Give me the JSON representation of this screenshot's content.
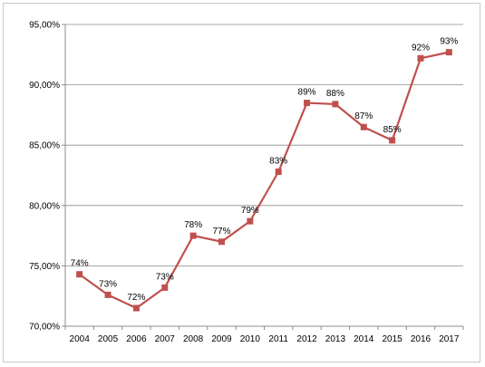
{
  "chart_data": {
    "type": "line",
    "title": "",
    "xlabel": "",
    "ylabel": "",
    "categories": [
      "2004",
      "2005",
      "2006",
      "2007",
      "2008",
      "2009",
      "2010",
      "2011",
      "2012",
      "2013",
      "2014",
      "2015",
      "2016",
      "2017"
    ],
    "series": [
      {
        "values": [
          74.3,
          72.6,
          71.5,
          73.2,
          77.5,
          77.0,
          78.7,
          82.8,
          88.5,
          88.4,
          86.5,
          85.4,
          92.2,
          92.7
        ],
        "data_labels": [
          "74%",
          "73%",
          "72%",
          "73%",
          "78%",
          "77%",
          "79%",
          "83%",
          "89%",
          "88%",
          "87%",
          "85%",
          "92%",
          "93%"
        ],
        "color": "#c0504d",
        "marker": "square"
      }
    ],
    "ylim": [
      70,
      95
    ],
    "yticks": [
      70,
      75,
      80,
      85,
      90,
      95
    ],
    "ytick_labels": [
      "70,00%",
      "75,00%",
      "80,00%",
      "85,00%",
      "90,00%",
      "95,00%"
    ],
    "grid": true,
    "legend": "none"
  }
}
